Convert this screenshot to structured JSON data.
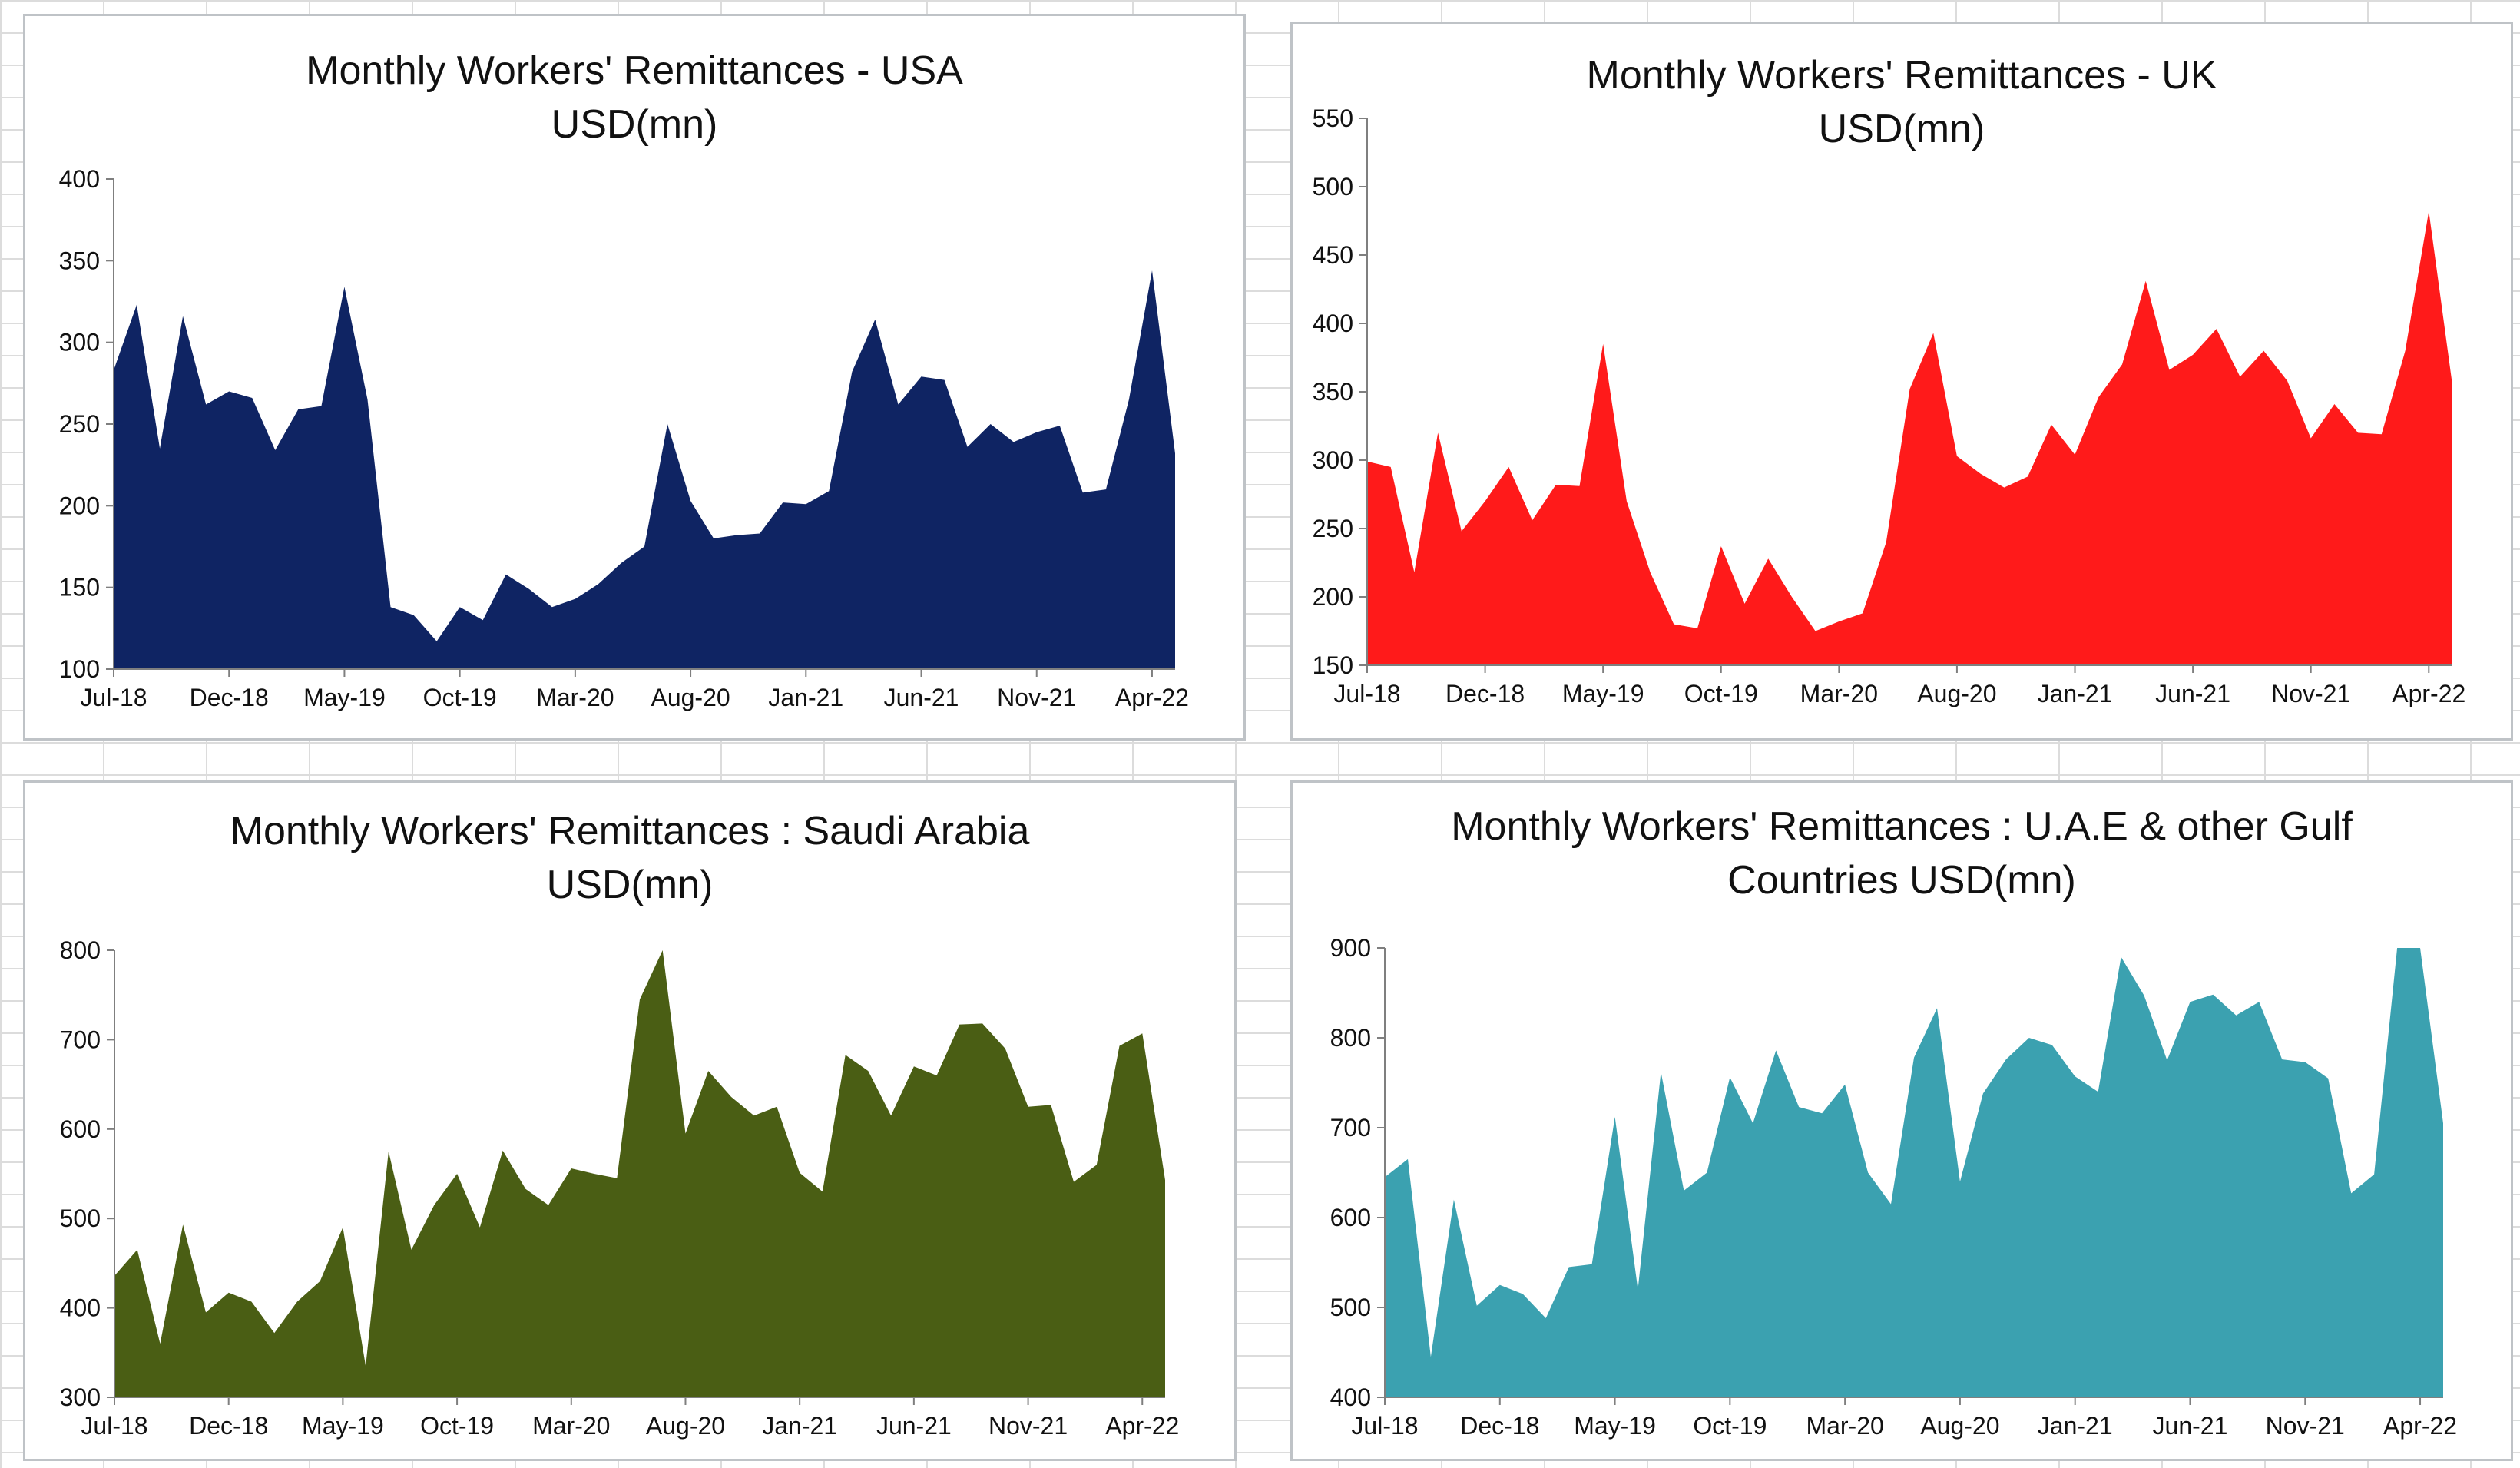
{
  "chart_data": [
    {
      "type": "area",
      "title": "Monthly  Workers' Remittances - USA\nUSD(mn)",
      "color": "#0f2463",
      "ylim": [
        100,
        400
      ],
      "yticks": [
        100,
        150,
        200,
        250,
        300,
        350,
        400
      ],
      "x": [
        "Jul-18",
        "Aug-18",
        "Sep-18",
        "Oct-18",
        "Nov-18",
        "Dec-18",
        "Jan-19",
        "Feb-19",
        "Mar-19",
        "Apr-19",
        "May-19",
        "Jun-19",
        "Jul-19",
        "Aug-19",
        "Sep-19",
        "Oct-19",
        "Nov-19",
        "Dec-19",
        "Jan-20",
        "Feb-20",
        "Mar-20",
        "Apr-20",
        "May-20",
        "Jun-20",
        "Jul-20",
        "Aug-20",
        "Sep-20",
        "Oct-20",
        "Nov-20",
        "Dec-20",
        "Jan-21",
        "Feb-21",
        "Mar-21",
        "Apr-21",
        "May-21",
        "Jun-21",
        "Jul-21",
        "Aug-21",
        "Sep-21",
        "Oct-21",
        "Nov-21",
        "Dec-21",
        "Jan-22",
        "Feb-22",
        "Mar-22",
        "Apr-22",
        "May-22"
      ],
      "xticks": [
        "Jul-18",
        "Dec-18",
        "May-19",
        "Oct-19",
        "Mar-20",
        "Aug-20",
        "Jan-21",
        "Jun-21",
        "Nov-21",
        "Apr-22"
      ],
      "values": [
        283,
        323,
        235,
        316,
        262,
        270,
        266,
        234,
        259,
        261,
        334,
        265,
        138,
        133,
        117,
        138,
        130,
        158,
        149,
        138,
        143,
        152,
        165,
        175,
        250,
        203,
        180,
        182,
        183,
        202,
        201,
        209,
        282,
        314,
        262,
        279,
        277,
        236,
        250,
        239,
        245,
        249,
        208,
        210,
        265,
        344,
        232
      ]
    },
    {
      "type": "area",
      "title": "Monthly Workers'  Remittances - UK\nUSD(mn)",
      "color": "#ff1a1a",
      "ylim": [
        150,
        550
      ],
      "yticks": [
        150,
        200,
        250,
        300,
        350,
        400,
        450,
        500,
        550
      ],
      "x": [
        "Jul-18",
        "Aug-18",
        "Sep-18",
        "Oct-18",
        "Nov-18",
        "Dec-18",
        "Jan-19",
        "Feb-19",
        "Mar-19",
        "Apr-19",
        "May-19",
        "Jun-19",
        "Jul-19",
        "Aug-19",
        "Sep-19",
        "Oct-19",
        "Nov-19",
        "Dec-19",
        "Jan-20",
        "Feb-20",
        "Mar-20",
        "Apr-20",
        "May-20",
        "Jun-20",
        "Jul-20",
        "Aug-20",
        "Sep-20",
        "Oct-20",
        "Nov-20",
        "Dec-20",
        "Jan-21",
        "Feb-21",
        "Mar-21",
        "Apr-21",
        "May-21",
        "Jun-21",
        "Jul-21",
        "Aug-21",
        "Sep-21",
        "Oct-21",
        "Nov-21",
        "Dec-21",
        "Jan-22",
        "Feb-22",
        "Mar-22",
        "Apr-22",
        "May-22"
      ],
      "xticks": [
        "Jul-18",
        "Dec-18",
        "May-19",
        "Oct-19",
        "Mar-20",
        "Aug-20",
        "Jan-21",
        "Jun-21",
        "Nov-21",
        "Apr-22"
      ],
      "values": [
        299,
        295,
        218,
        320,
        248,
        270,
        295,
        256,
        282,
        281,
        385,
        270,
        218,
        180,
        177,
        237,
        195,
        228,
        200,
        175,
        182,
        188,
        240,
        352,
        393,
        303,
        290,
        280,
        288,
        326,
        304,
        346,
        370,
        431,
        366,
        377,
        396,
        361,
        380,
        358,
        316,
        341,
        320,
        319,
        380,
        482,
        355
      ]
    },
    {
      "type": "area",
      "title": "Monthly Workers'  Remittances : Saudi Arabia\nUSD(mn)",
      "color": "#4a5e14",
      "ylim": [
        300,
        800
      ],
      "yticks": [
        300,
        400,
        500,
        600,
        700,
        800
      ],
      "x": [
        "Jul-18",
        "Aug-18",
        "Sep-18",
        "Oct-18",
        "Nov-18",
        "Dec-18",
        "Jan-19",
        "Feb-19",
        "Mar-19",
        "Apr-19",
        "May-19",
        "Jun-19",
        "Jul-19",
        "Aug-19",
        "Sep-19",
        "Oct-19",
        "Nov-19",
        "Dec-19",
        "Jan-20",
        "Feb-20",
        "Mar-20",
        "Apr-20",
        "May-20",
        "Jun-20",
        "Jul-20",
        "Aug-20",
        "Sep-20",
        "Oct-20",
        "Nov-20",
        "Dec-20",
        "Jan-21",
        "Feb-21",
        "Mar-21",
        "Apr-21",
        "May-21",
        "Jun-21",
        "Jul-21",
        "Aug-21",
        "Sep-21",
        "Oct-21",
        "Nov-21",
        "Dec-21",
        "Jan-22",
        "Feb-22",
        "Mar-22",
        "Apr-22",
        "May-22"
      ],
      "xticks": [
        "Jul-18",
        "Dec-18",
        "May-19",
        "Oct-19",
        "Mar-20",
        "Aug-20",
        "Jan-21",
        "Jun-21",
        "Nov-21",
        "Apr-22"
      ],
      "values": [
        436,
        465,
        360,
        493,
        395,
        417,
        407,
        372,
        407,
        430,
        490,
        335,
        575,
        465,
        515,
        550,
        490,
        576,
        533,
        515,
        556,
        550,
        545,
        745,
        800,
        595,
        665,
        636,
        615,
        625,
        551,
        530,
        683,
        665,
        615,
        670,
        660,
        717,
        718,
        690,
        625,
        627,
        541,
        560,
        693,
        707,
        543
      ]
    },
    {
      "type": "area",
      "title": "Monthly  Workers' Remittances  : U.A.E & other Gulf\nCountries USD(mn)",
      "color": "#3ba1b0",
      "ylim": [
        400,
        900
      ],
      "yticks": [
        400,
        500,
        600,
        700,
        800,
        900
      ],
      "x": [
        "Jul-18",
        "Aug-18",
        "Sep-18",
        "Oct-18",
        "Nov-18",
        "Dec-18",
        "Jan-19",
        "Feb-19",
        "Mar-19",
        "Apr-19",
        "May-19",
        "Jun-19",
        "Jul-19",
        "Aug-19",
        "Sep-19",
        "Oct-19",
        "Nov-19",
        "Dec-19",
        "Jan-20",
        "Feb-20",
        "Mar-20",
        "Apr-20",
        "May-20",
        "Jun-20",
        "Jul-20",
        "Aug-20",
        "Sep-20",
        "Oct-20",
        "Nov-20",
        "Dec-20",
        "Jan-21",
        "Feb-21",
        "Mar-21",
        "Apr-21",
        "May-21",
        "Jun-21",
        "Jul-21",
        "Aug-21",
        "Sep-21",
        "Oct-21",
        "Nov-21",
        "Dec-21",
        "Jan-22",
        "Feb-22",
        "Mar-22",
        "Apr-22",
        "May-22"
      ],
      "xticks": [
        "Jul-18",
        "Dec-18",
        "May-19",
        "Oct-19",
        "Mar-20",
        "Aug-20",
        "Jan-21",
        "Jun-21",
        "Nov-21",
        "Apr-22"
      ],
      "values": [
        645,
        665,
        445,
        620,
        502,
        525,
        515,
        488,
        545,
        548,
        712,
        520,
        762,
        630,
        650,
        756,
        705,
        786,
        723,
        716,
        748,
        650,
        615,
        778,
        833,
        640,
        738,
        776,
        800,
        792,
        757,
        740,
        890,
        847,
        775,
        840,
        848,
        825,
        840,
        776,
        773,
        755,
        627,
        648,
        900,
        900,
        705
      ]
    }
  ]
}
